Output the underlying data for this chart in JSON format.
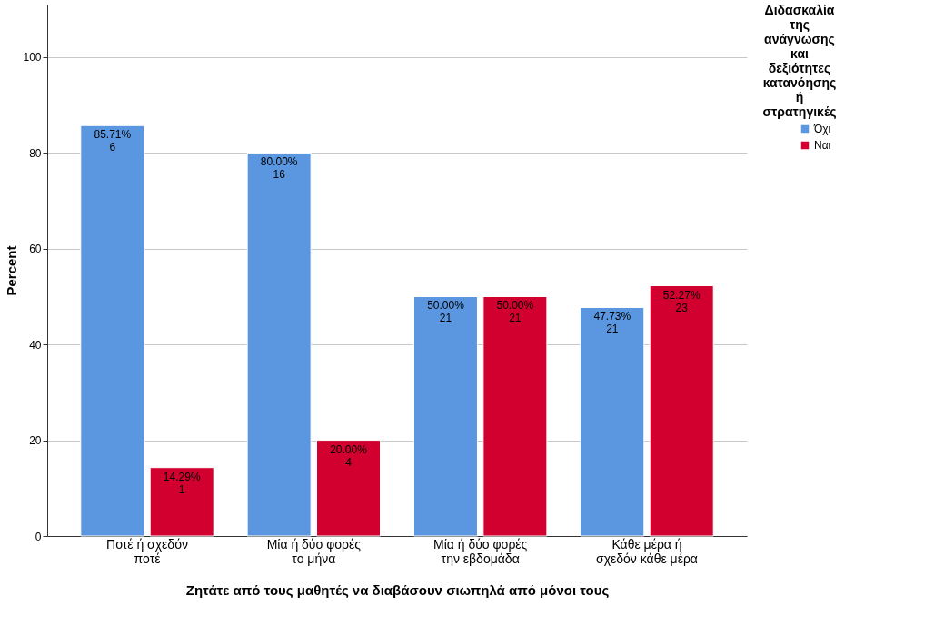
{
  "chart_data": {
    "type": "bar",
    "xlabel": "Ζητάτε από τους μαθητές να διαβάσουν σιωπηλά από μόνοι τους",
    "ylabel": "Percent",
    "legend_title": "Διδασκαλία της ανάγνωσης και δεξιότητες κατανόησης ή στρατηγικές",
    "categories": [
      "Ποτέ ή σχεδόν ποτέ",
      "Μία ή δύο φορές το μήνα",
      "Μία ή δύο φορές την εβδομάδα",
      "Κάθε μέρα ή σχεδόν κάθε μέρα"
    ],
    "series": [
      {
        "name": "Όχι",
        "color": "#5b97e0",
        "values": [
          85.71,
          80.0,
          50.0,
          47.73
        ],
        "value_labels": [
          "85.71%\n6",
          "80.00%\n16",
          "50.00%\n21",
          "47.73%\n21"
        ]
      },
      {
        "name": "Ναι",
        "color": "#d1002f",
        "values": [
          14.29,
          20.0,
          50.0,
          52.27
        ],
        "value_labels": [
          "14.29%\n1",
          "20.00%\n4",
          "50.00%\n21",
          "52.27%\n23"
        ]
      }
    ],
    "ylim": [
      0,
      111
    ],
    "yticks": [
      0,
      20,
      40,
      60,
      80,
      100
    ],
    "grid": "y",
    "legend": "top right"
  }
}
